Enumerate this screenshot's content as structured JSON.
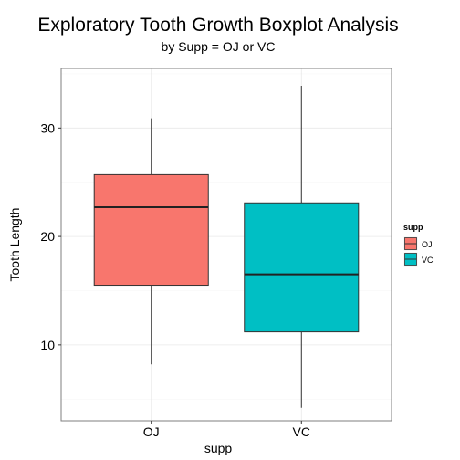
{
  "chart_data": {
    "type": "boxplot",
    "title": "Exploratory Tooth Growth Boxplot Analysis",
    "subtitle": "by Supp = OJ or VC",
    "xlabel": "supp",
    "ylabel": "Tooth Length",
    "categories": [
      "OJ",
      "VC"
    ],
    "boxes": [
      {
        "category": "OJ",
        "min": 8.2,
        "q1": 15.5,
        "median": 22.7,
        "q3": 25.7,
        "max": 30.9,
        "color": "#F8766D"
      },
      {
        "category": "VC",
        "min": 4.2,
        "q1": 11.2,
        "median": 16.5,
        "q3": 23.1,
        "max": 33.9,
        "color": "#00BFC4"
      }
    ],
    "ylim": [
      3.0,
      35.5
    ],
    "yticks": [
      10,
      20,
      30
    ],
    "grid": true,
    "legend": {
      "title": "supp",
      "position": "right",
      "entries": [
        {
          "label": "OJ",
          "color": "#F8766D"
        },
        {
          "label": "VC",
          "color": "#00BFC4"
        }
      ]
    }
  }
}
